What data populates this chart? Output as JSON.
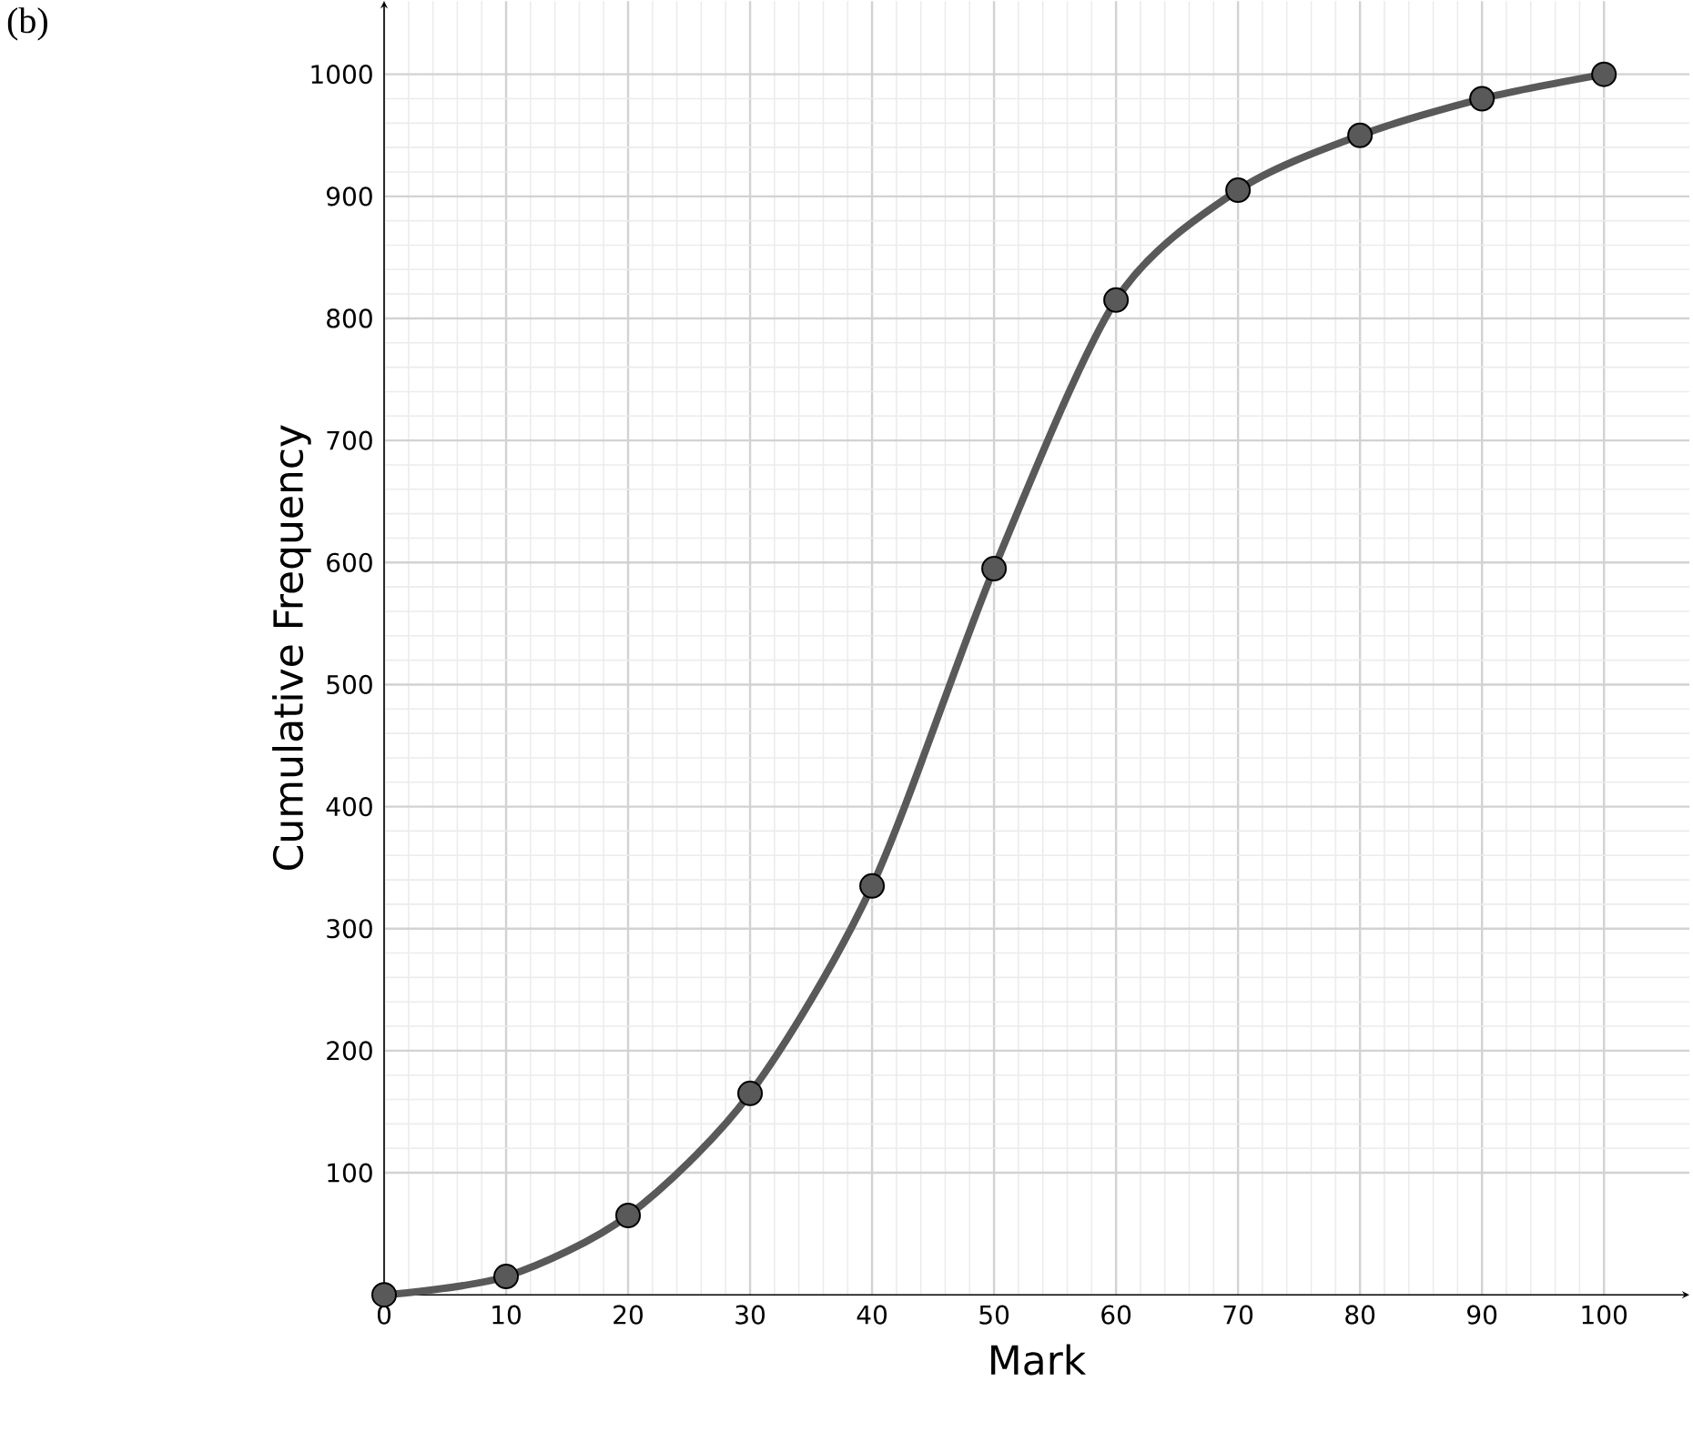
{
  "chart_data": {
    "type": "line",
    "xlabel": "Mark",
    "ylabel": "Cumulative Frequency",
    "annotations": [
      "(b)"
    ],
    "x": [
      0,
      10,
      20,
      30,
      40,
      50,
      60,
      70,
      80,
      90,
      100
    ],
    "series": [
      {
        "color": "#595959",
        "values": [
          0,
          15,
          65,
          165,
          335,
          595,
          815,
          905,
          950,
          980,
          1000
        ]
      }
    ],
    "xlim": [
      0,
      107
    ],
    "ylim": [
      0,
      1060
    ],
    "xticks": [
      0,
      10,
      20,
      30,
      40,
      50,
      60,
      70,
      80,
      90,
      100
    ],
    "yticks": [
      100,
      200,
      300,
      400,
      500,
      600,
      700,
      800,
      900,
      1000
    ],
    "grid": true,
    "marker": "circle",
    "line_style": "solid"
  }
}
